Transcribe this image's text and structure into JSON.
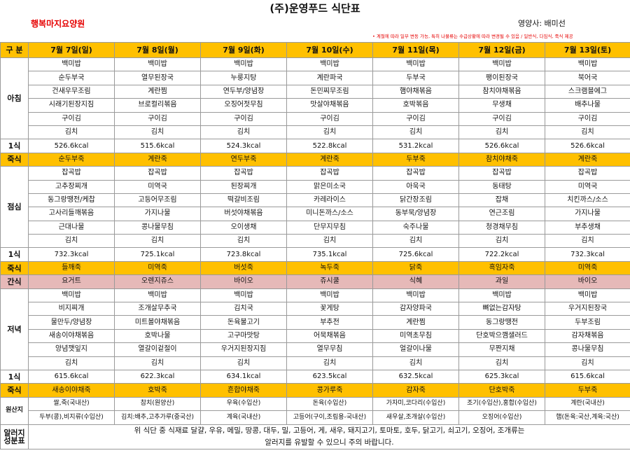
{
  "title": "(주)운영푸드 식단표",
  "facility": "행복마지요양원",
  "dietitian": "영양사: 배미선",
  "notice": "• 계절에 따라 일부 변동 가능, 특히 나물류는 수급상황에 따라 변경될 수 있음 / 일반식, 다짐식, 죽식 제공",
  "header": {
    "label": "구 분",
    "days": [
      "7월 7일(일)",
      "7월 8일(월)",
      "7월 9일(화)",
      "7월 10일(수)",
      "7월 11일(목)",
      "7월 12일(금)",
      "7월 13일(토)"
    ]
  },
  "breakfast": {
    "label": "아침",
    "rows": [
      [
        "백미밥",
        "백미밥",
        "백미밥",
        "백미밥",
        "백미밥",
        "백미밥",
        "백미밥"
      ],
      [
        "순두부국",
        "열무된장국",
        "누룽지탕",
        "계란파국",
        "두부국",
        "팽이된장국",
        "북어국"
      ],
      [
        "건새우무조림",
        "계란찜",
        "연두부/양념장",
        "돈민찌무조림",
        "햄야채볶음",
        "참치야채볶음",
        "스크램블에그"
      ],
      [
        "시래기된장지짐",
        "브로컬리볶음",
        "오징어젓무침",
        "맛살야채볶음",
        "호박볶음",
        "무생채",
        "배추나물"
      ],
      [
        "구이김",
        "구이김",
        "구이김",
        "구이김",
        "구이김",
        "구이김",
        "구이김"
      ],
      [
        "김치",
        "김치",
        "김치",
        "김치",
        "김치",
        "김치",
        "김치"
      ]
    ],
    "kcal_label": "1식",
    "kcal": [
      "526.6kcal",
      "515.6kcal",
      "524.3kcal",
      "522.8kcal",
      "531.2kcal",
      "526.6kcal",
      "526.6kcal"
    ],
    "porridge_label": "죽식",
    "porridge": [
      "순두부죽",
      "계란죽",
      "연두부죽",
      "계란죽",
      "두부죽",
      "참치야채죽",
      "계란죽"
    ]
  },
  "lunch": {
    "label": "점심",
    "rows": [
      [
        "잡곡밥",
        "잡곡밥",
        "잡곡밥",
        "잡곡밥",
        "잡곡밥",
        "잡곡밥",
        "잡곡밥"
      ],
      [
        "고추장찌개",
        "미역국",
        "된장찌개",
        "맑은미소국",
        "아욱국",
        "동태탕",
        "미역국"
      ],
      [
        "동그랑땡전/케찹",
        "고등어무조림",
        "떡갈비조림",
        "카레라이스",
        "닭간장조림",
        "잡채",
        "치킨까스/소스"
      ],
      [
        "고사리들깨볶음",
        "가지나물",
        "버섯야채볶음",
        "미니돈까스/소스",
        "동부묵/양념장",
        "연근조림",
        "가지나물"
      ],
      [
        "근대나물",
        "콩나물무침",
        "오이생채",
        "단무지무침",
        "숙주나물",
        "청경채무침",
        "부추생채"
      ],
      [
        "김치",
        "김치",
        "김치",
        "김치",
        "김치",
        "김치",
        "김치"
      ]
    ],
    "kcal_label": "1식",
    "kcal": [
      "732.3kcal",
      "725.1kcal",
      "723.8kcal",
      "735.1kcal",
      "725.6kcal",
      "722.2kcal",
      "732.3kcal"
    ],
    "porridge_label": "죽식",
    "porridge": [
      "들깨죽",
      "미역죽",
      "버섯죽",
      "녹두죽",
      "닭죽",
      "흑임자죽",
      "미역죽"
    ]
  },
  "snack": {
    "label": "간식",
    "items": [
      "요거트",
      "오렌지쥬스",
      "바이오",
      "쥬시쿨",
      "식혜",
      "과일",
      "바이오"
    ]
  },
  "dinner": {
    "label": "저녁",
    "rows": [
      [
        "백미밥",
        "백미밥",
        "백미밥",
        "백미밥",
        "백미밥",
        "백미밥",
        "백미밥"
      ],
      [
        "비지찌개",
        "조개살무추국",
        "김치국",
        "꽃게탕",
        "감자양파국",
        "뼈없는감자탕",
        "우거지된장국"
      ],
      [
        "물만두/양념장",
        "미트볼야채볶음",
        "돈육불고기",
        "부추전",
        "계란찜",
        "동그랑땡전",
        "두부조림"
      ],
      [
        "새송이야채볶음",
        "호박나물",
        "고구마맛탕",
        "어묵채볶음",
        "미역초무침",
        "단호박으깸샐러드",
        "감자채볶음"
      ],
      [
        "양념깻잎지",
        "열갈이겉절이",
        "우거지된장지짐",
        "열무무침",
        "얼갈이나물",
        "무짠지채",
        "콩나물무침"
      ],
      [
        "김치",
        "김치",
        "김치",
        "김치",
        "김치",
        "김치",
        "김치"
      ]
    ],
    "kcal_label": "1식",
    "kcal": [
      "615.6kcal",
      "622.3kcal",
      "634.1kcal",
      "623.5kcal",
      "632.5kcal",
      "625.3kcal",
      "615.6kcal"
    ],
    "porridge_label": "죽식",
    "porridge": [
      "새송이야채죽",
      "호박죽",
      "흔합야채죽",
      "콩가루죽",
      "감자죽",
      "단호박죽",
      "두부죽"
    ]
  },
  "origin": {
    "label": "원산지",
    "rows": [
      [
        "쌀,죽(국내산)",
        "참치(원양산)",
        "우육(수입산)",
        "돈육(수입산)",
        "가자미,코다리(수입산)",
        "조기(수입산),홍합(수입산)",
        "계란(국내산)"
      ],
      [
        "두부(콩),비지류(수입산)",
        "김치:배추,고추가루(중국산)",
        "계육(국내산)",
        "고등어(구이,조림용-국내산)",
        "새우살,조개살(수입산)",
        "오징어(수입산)",
        "햄(돈육:국산,계육:국산)"
      ]
    ]
  },
  "allergy": {
    "label_1": "알러지",
    "label_2": "성분표",
    "line_1": "위 식단 중 식재료 달걀, 우유, 메밀, 땅콩, 대두, 밀, 고등어, 게, 새우, 돼지고기, 토마토, 호두, 닭고기, 쇠고기, 오징어, 조개류는",
    "line_2": "알러지를 유발할 수 있으니 주의 바랍니다."
  },
  "colors": {
    "header_bg": "#ffc000",
    "porridge_bg": "#ffc000",
    "snack_bg": "#e6b9b8",
    "facility_text": "#e60000",
    "notice_text": "#e60000"
  }
}
